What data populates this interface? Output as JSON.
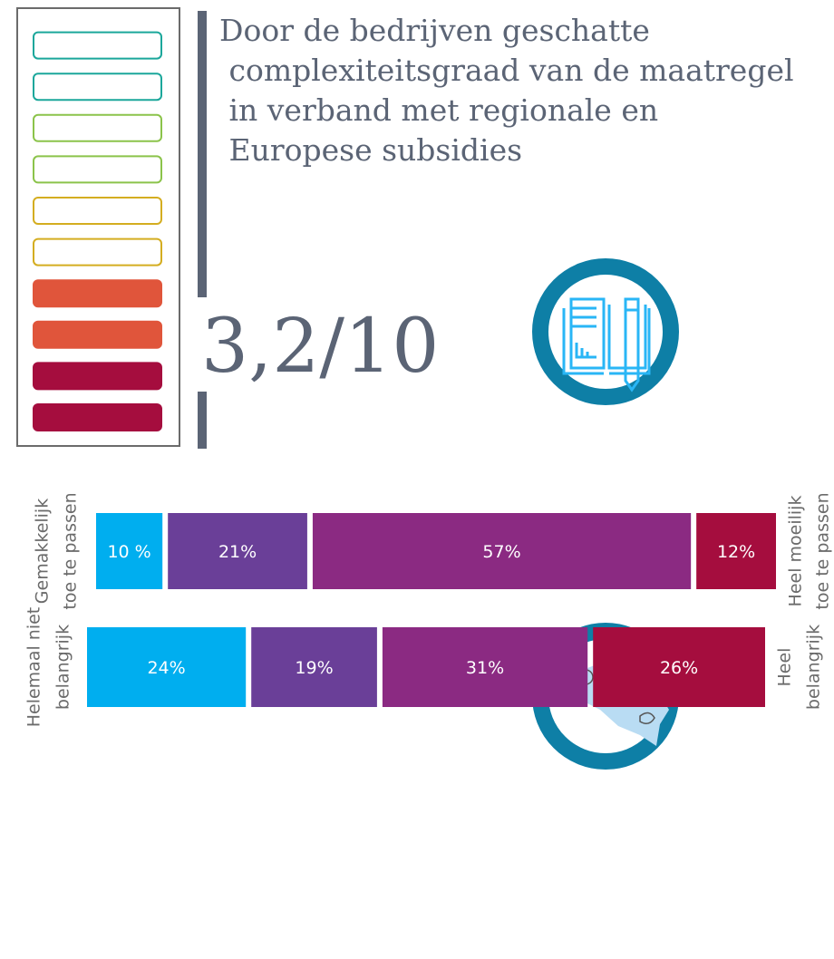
{
  "title": "Door de bedrijven geschatte complexiteitsgraad van de maatregel in verband met regionale en Europese subsidies",
  "score": {
    "value": 3.2,
    "max": 10,
    "label": "3,2/10",
    "colors": [
      "#a50d3e",
      "#a50d3e",
      "#e0553b",
      "#e0553b",
      "#d4ad20",
      "#d4ad20",
      "#8bc34a",
      "#8bc34a",
      "#1ba79b",
      "#1ba79b"
    ]
  },
  "chart_data": [
    {
      "type": "stacked-bar",
      "left_label": [
        "Gemakkelijk",
        "toe te passen"
      ],
      "right_label": [
        "Heel moeilijk",
        "toe te passen"
      ],
      "values": [
        10,
        21,
        57,
        12
      ],
      "value_labels": [
        "10 %",
        "21%",
        "57%",
        "12%"
      ],
      "colors": [
        "#00aeef",
        "#6a3f98",
        "#8b2a82",
        "#a50d3e"
      ]
    },
    {
      "type": "stacked-bar",
      "left_label": [
        "Helemaal niet",
        "belangrijk"
      ],
      "right_label": [
        "Heel",
        "belangrijk"
      ],
      "values": [
        24,
        19,
        31,
        26
      ],
      "value_labels": [
        "24%",
        "19%",
        "31%",
        "26%"
      ],
      "colors": [
        "#00aeef",
        "#6a3f98",
        "#8b2a82",
        "#a50d3e"
      ]
    }
  ]
}
